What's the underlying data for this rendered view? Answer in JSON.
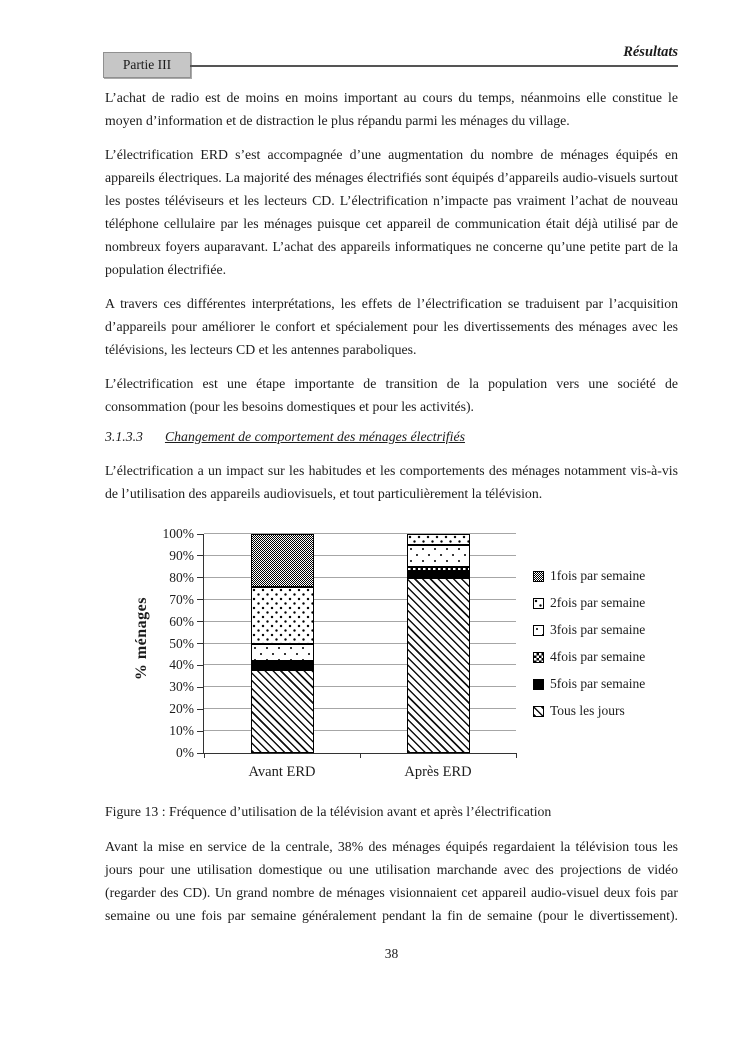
{
  "header": {
    "part_label": "Partie III",
    "right_label": "Résultats"
  },
  "paragraphs": {
    "p1": "L’achat de radio est de moins en moins important au cours du temps, néanmoins elle constitue le moyen d’information et de distraction le plus répandu parmi les ménages du village.",
    "p2": "L’électrification ERD s’est accompagnée d’une augmentation du nombre de ménages équipés en appareils électriques. La majorité des ménages électrifiés sont équipés d’appareils audio-visuels surtout les postes téléviseurs et les lecteurs CD. L’électrification n’impacte pas vraiment l’achat de nouveau téléphone cellulaire par les ménages puisque cet appareil de communication était déjà utilisé par de nombreux foyers auparavant. L’achat des appareils informatiques ne concerne qu’une petite part de la population électrifiée.",
    "p3": "A travers ces différentes interprétations, les effets de l’électrification se traduisent par l’acquisition d’appareils pour améliorer le confort et spécialement pour les divertissements des ménages avec les télévisions, les lecteurs CD et les antennes paraboliques.",
    "p4": "L’électrification est une étape importante de transition de la population vers une société de consommation (pour les besoins domestiques et pour les activités).",
    "p5": "L’électrification a un impact sur les habitudes et les comportements des ménages notamment vis-à-vis de l’utilisation des appareils audiovisuels, et tout particulièrement la télévision.",
    "p6": "Avant la mise en service de la centrale, 38% des ménages équipés regardaient la télévision tous les jours pour une utilisation domestique ou une utilisation marchande avec des projections de vidéo (regarder des CD). Un grand nombre de ménages visionnaient cet appareil audio-visuel deux fois par semaine ou une fois par semaine généralement pendant la fin de semaine (pour le divertissement)."
  },
  "heading": {
    "number": "3.1.3.3",
    "title": "Changement de comportement des ménages électrifiés"
  },
  "caption": "Figure 13 : Fréquence d’utilisation de la télévision avant et après l’électrification",
  "page_number": "38",
  "colors": {
    "grid": "#a6a6a6",
    "axis": "#333333",
    "header_box_fill": "#c6c6c6",
    "header_box_border": "#909090",
    "ink": "#1c1c1c"
  },
  "chart_data": {
    "type": "bar",
    "stacked": true,
    "categories": [
      "Avant ERD",
      "Après ERD"
    ],
    "series": [
      {
        "name": "1fois par semaine",
        "pattern": "cross-hatch",
        "values": [
          24,
          0
        ]
      },
      {
        "name": "2fois par semaine",
        "pattern": "dots-diamond",
        "values": [
          26,
          5
        ]
      },
      {
        "name": "3fois par semaine",
        "pattern": "dots-sparse",
        "values": [
          8,
          10
        ]
      },
      {
        "name": "4fois par semaine",
        "pattern": "checker",
        "values": [
          0,
          2
        ]
      },
      {
        "name": "5fois par semaine",
        "pattern": "solid-black",
        "values": [
          4,
          3
        ]
      },
      {
        "name": "Tous les jours",
        "pattern": "diag-hatch",
        "values": [
          38,
          80
        ]
      }
    ],
    "stack_order_bottom_to_top": [
      "Tous les jours",
      "5fois par semaine",
      "4fois par semaine",
      "3fois par semaine",
      "2fois par semaine",
      "1fois par semaine"
    ],
    "ylabel": "% ménages",
    "xlabel": "",
    "ylim": [
      0,
      100
    ],
    "ytick_step": 10,
    "ytick_suffix": "%",
    "grid": "horizontal",
    "legend_position": "right"
  }
}
